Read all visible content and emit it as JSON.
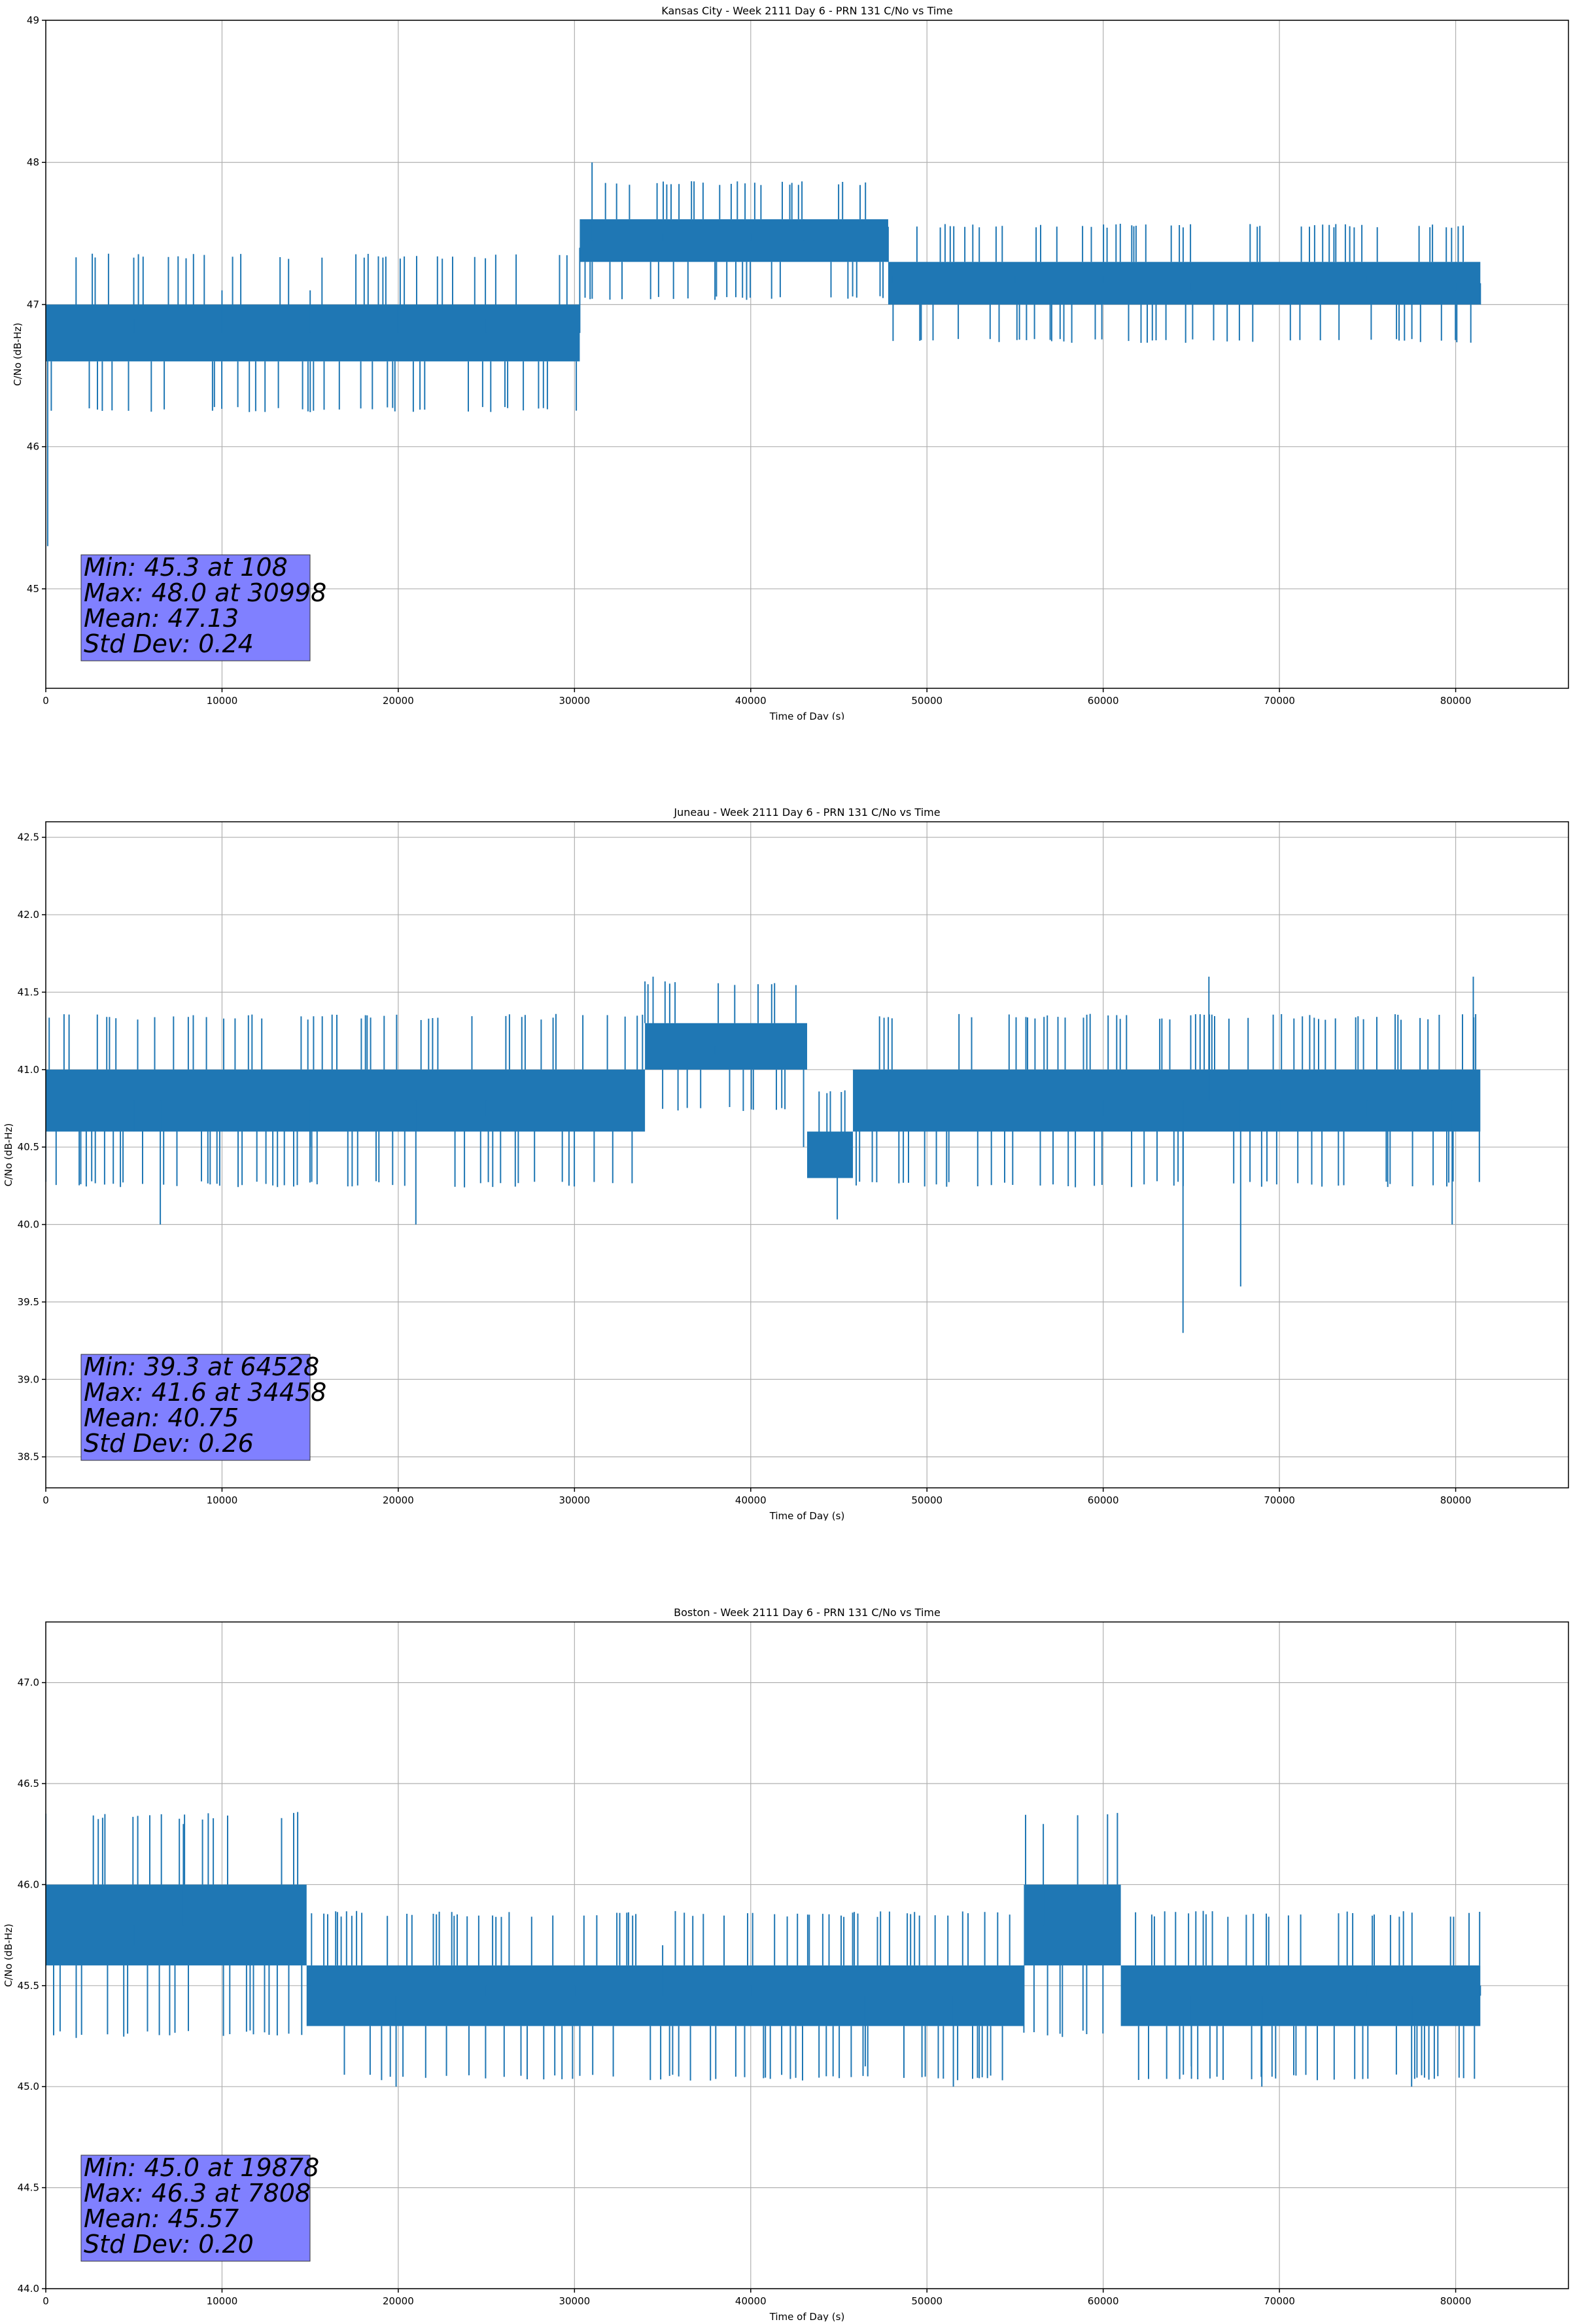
{
  "colors": {
    "series": "#1f77b4",
    "grid": "#b0b0b0",
    "stats_box": "#8080ff",
    "axis": "#000000"
  },
  "chart_data": [
    {
      "type": "line",
      "title": "Kansas City - Week 2111 Day 6 - PRN 131 C/No vs Time",
      "xlabel": "Time of Day (s)",
      "ylabel": "C/No (dB-Hz)",
      "xlim": [
        0,
        86400
      ],
      "ylim": [
        44.3,
        49.0
      ],
      "xticks": [
        "0",
        "10000",
        "20000",
        "30000",
        "40000",
        "50000",
        "60000",
        "70000",
        "80000"
      ],
      "yticks": [
        "45",
        "46",
        "47",
        "48",
        "49"
      ],
      "grid": true,
      "series": [
        {
          "x": [
            0,
            108,
            500,
            5000,
            10000,
            15000,
            20000,
            25000,
            29800,
            30300,
            30998,
            35000,
            40000,
            43000,
            47500,
            48000,
            55000,
            60000,
            65000,
            70000,
            75000,
            80000,
            81400
          ],
          "y": [
            46.7,
            45.3,
            46.8,
            46.9,
            47.1,
            47.1,
            47.0,
            46.9,
            46.8,
            47.4,
            48.0,
            47.5,
            47.5,
            47.6,
            47.4,
            47.2,
            47.2,
            47.2,
            47.1,
            47.2,
            47.2,
            47.1,
            47.0
          ],
          "band": [
            [
              0,
              30300,
              46.6,
              47.0
            ],
            [
              30300,
              47800,
              47.3,
              47.6
            ],
            [
              47800,
              81400,
              47.0,
              47.3
            ]
          ]
        }
      ],
      "stats": [
        "Min: 45.3 at 108",
        "Max: 48.0 at 30998",
        "Mean: 47.13",
        "Std Dev: 0.24"
      ]
    },
    {
      "type": "line",
      "title": "Juneau - Week 2111 Day 6 - PRN 131 C/No vs Time",
      "xlabel": "Time of Day (s)",
      "ylabel": "C/No (dB-Hz)",
      "xlim": [
        0,
        86400
      ],
      "ylim": [
        38.3,
        42.6
      ],
      "xticks": [
        "0",
        "10000",
        "20000",
        "30000",
        "40000",
        "50000",
        "60000",
        "70000",
        "80000"
      ],
      "yticks": [
        "38.5",
        "39.0",
        "39.5",
        "40.0",
        "40.5",
        "41.0",
        "41.5",
        "42.0",
        "42.5"
      ],
      "grid": true,
      "series": [
        {
          "x": [
            0,
            5000,
            6500,
            10000,
            15000,
            21000,
            25000,
            30000,
            34458,
            38000,
            43000,
            46000,
            50000,
            55000,
            60000,
            64528,
            66000,
            67800,
            70000,
            75000,
            79800,
            81000,
            81400
          ],
          "y": [
            40.7,
            40.6,
            40.0,
            40.8,
            40.5,
            40.0,
            40.7,
            40.8,
            41.6,
            41.1,
            40.5,
            40.8,
            40.8,
            40.8,
            40.7,
            39.3,
            41.6,
            39.6,
            40.7,
            40.7,
            40.0,
            41.6,
            40.8
          ],
          "band": [
            [
              0,
              34000,
              40.6,
              41.0
            ],
            [
              34000,
              43200,
              41.0,
              41.3
            ],
            [
              43200,
              45800,
              40.3,
              40.6
            ],
            [
              45800,
              81400,
              40.6,
              41.0
            ]
          ]
        }
      ],
      "stats": [
        "Min: 39.3 at 64528",
        "Max: 41.6 at 34458",
        "Mean: 40.75",
        "Std Dev: 0.26"
      ]
    },
    {
      "type": "line",
      "title": "Boston - Week 2111 Day 6 - PRN 131 C/No vs Time",
      "xlabel": "Time of Day (s)",
      "ylabel": "C/No (dB-Hz)",
      "xlim": [
        0,
        86400
      ],
      "ylim": [
        44.0,
        47.3
      ],
      "xticks": [
        "0",
        "10000",
        "20000",
        "30000",
        "40000",
        "50000",
        "60000",
        "70000",
        "80000"
      ],
      "yticks": [
        "44.0",
        "44.5",
        "45.0",
        "45.5",
        "46.0",
        "46.5",
        "47.0"
      ],
      "grid": true,
      "series": [
        {
          "x": [
            0,
            5000,
            7808,
            10000,
            15000,
            19878,
            25000,
            30000,
            35000,
            40000,
            46500,
            51500,
            56600,
            60000,
            65000,
            69000,
            75000,
            77500,
            81400
          ],
          "y": [
            45.6,
            45.7,
            46.3,
            45.8,
            45.5,
            45.0,
            45.5,
            45.5,
            45.7,
            45.5,
            45.1,
            45.0,
            46.3,
            45.8,
            45.1,
            45.0,
            45.5,
            45.0,
            45.5
          ],
          "band": [
            [
              0,
              14800,
              45.6,
              46.0
            ],
            [
              14800,
              55500,
              45.3,
              45.6
            ],
            [
              55500,
              61000,
              45.6,
              46.0
            ],
            [
              61000,
              81400,
              45.3,
              45.6
            ]
          ]
        }
      ],
      "stats": [
        "Min: 45.0 at 19878",
        "Max: 46.3 at 7808",
        "Mean: 45.57",
        "Std Dev: 0.20"
      ]
    }
  ]
}
